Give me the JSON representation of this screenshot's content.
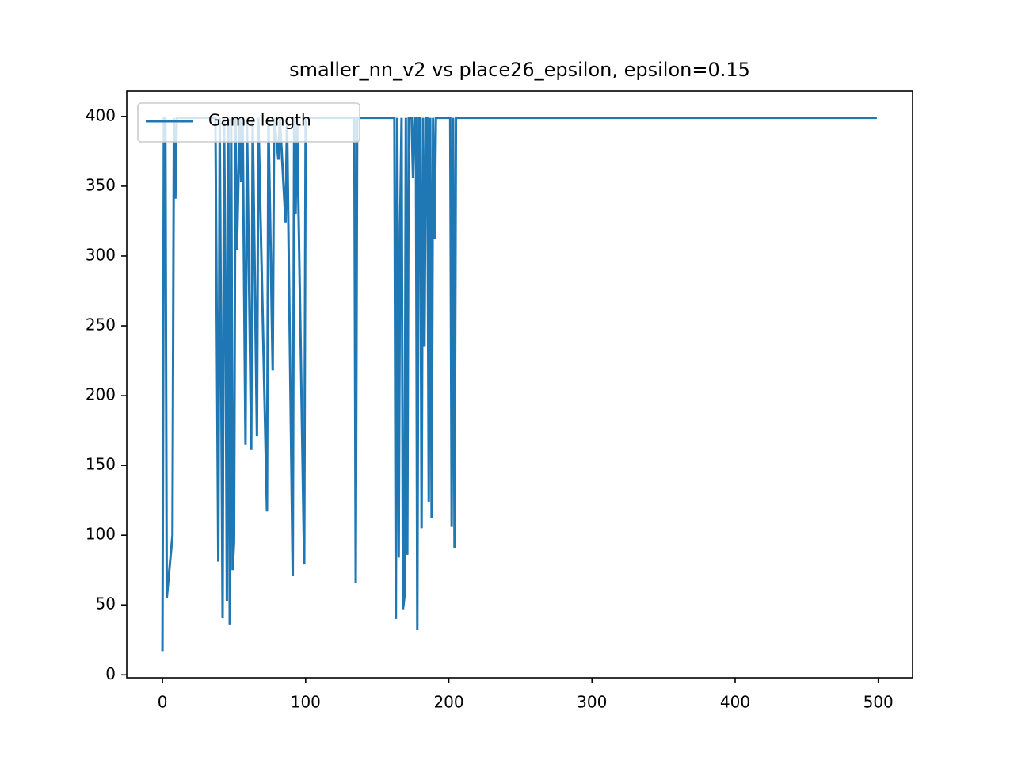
{
  "chart_data": {
    "type": "line",
    "title": "smaller_nn_v2 vs place26_epsilon, epsilon=0.15",
    "x": [
      0,
      1,
      2,
      3,
      7,
      8,
      9,
      10,
      37,
      39,
      40,
      42,
      43,
      44,
      45,
      46,
      47,
      48,
      49,
      50,
      51,
      52,
      54,
      55,
      56,
      58,
      59,
      62,
      63,
      66,
      67,
      73,
      74,
      77,
      78,
      81,
      82,
      86,
      87,
      91,
      92,
      93,
      94,
      99,
      100,
      134,
      135,
      136,
      162,
      163,
      164,
      165,
      166,
      167,
      168,
      169,
      170,
      171,
      172,
      174,
      175,
      176,
      177,
      178,
      179,
      180,
      181,
      182,
      183,
      184,
      185,
      186,
      187,
      188,
      189,
      190,
      191,
      201,
      202,
      203,
      204,
      205,
      499
    ],
    "series": [
      {
        "name": "Game length",
        "color": "#1f77b4",
        "values": [
          17,
          399,
          399,
          55,
          100,
          399,
          341,
          399,
          399,
          81,
          399,
          41,
          399,
          278,
          53,
          399,
          36,
          399,
          75,
          95,
          399,
          304,
          399,
          353,
          399,
          165,
          399,
          161,
          399,
          171,
          399,
          117,
          399,
          218,
          399,
          369,
          399,
          324,
          399,
          71,
          399,
          330,
          399,
          79,
          399,
          399,
          66,
          399,
          399,
          40,
          399,
          84,
          322,
          399,
          47,
          56,
          399,
          86,
          399,
          399,
          356,
          399,
          399,
          32,
          399,
          399,
          105,
          399,
          235,
          399,
          399,
          124,
          399,
          112,
          399,
          312,
          399,
          399,
          106,
          399,
          91,
          399,
          399
        ]
      }
    ],
    "xlim": [
      -24.95,
      523.95
    ],
    "ylim": [
      -2.1,
      418.1
    ],
    "xticks": [
      0,
      100,
      200,
      300,
      400,
      500
    ],
    "yticks": [
      0,
      50,
      100,
      150,
      200,
      250,
      300,
      350,
      400
    ],
    "legend": "upper left"
  }
}
